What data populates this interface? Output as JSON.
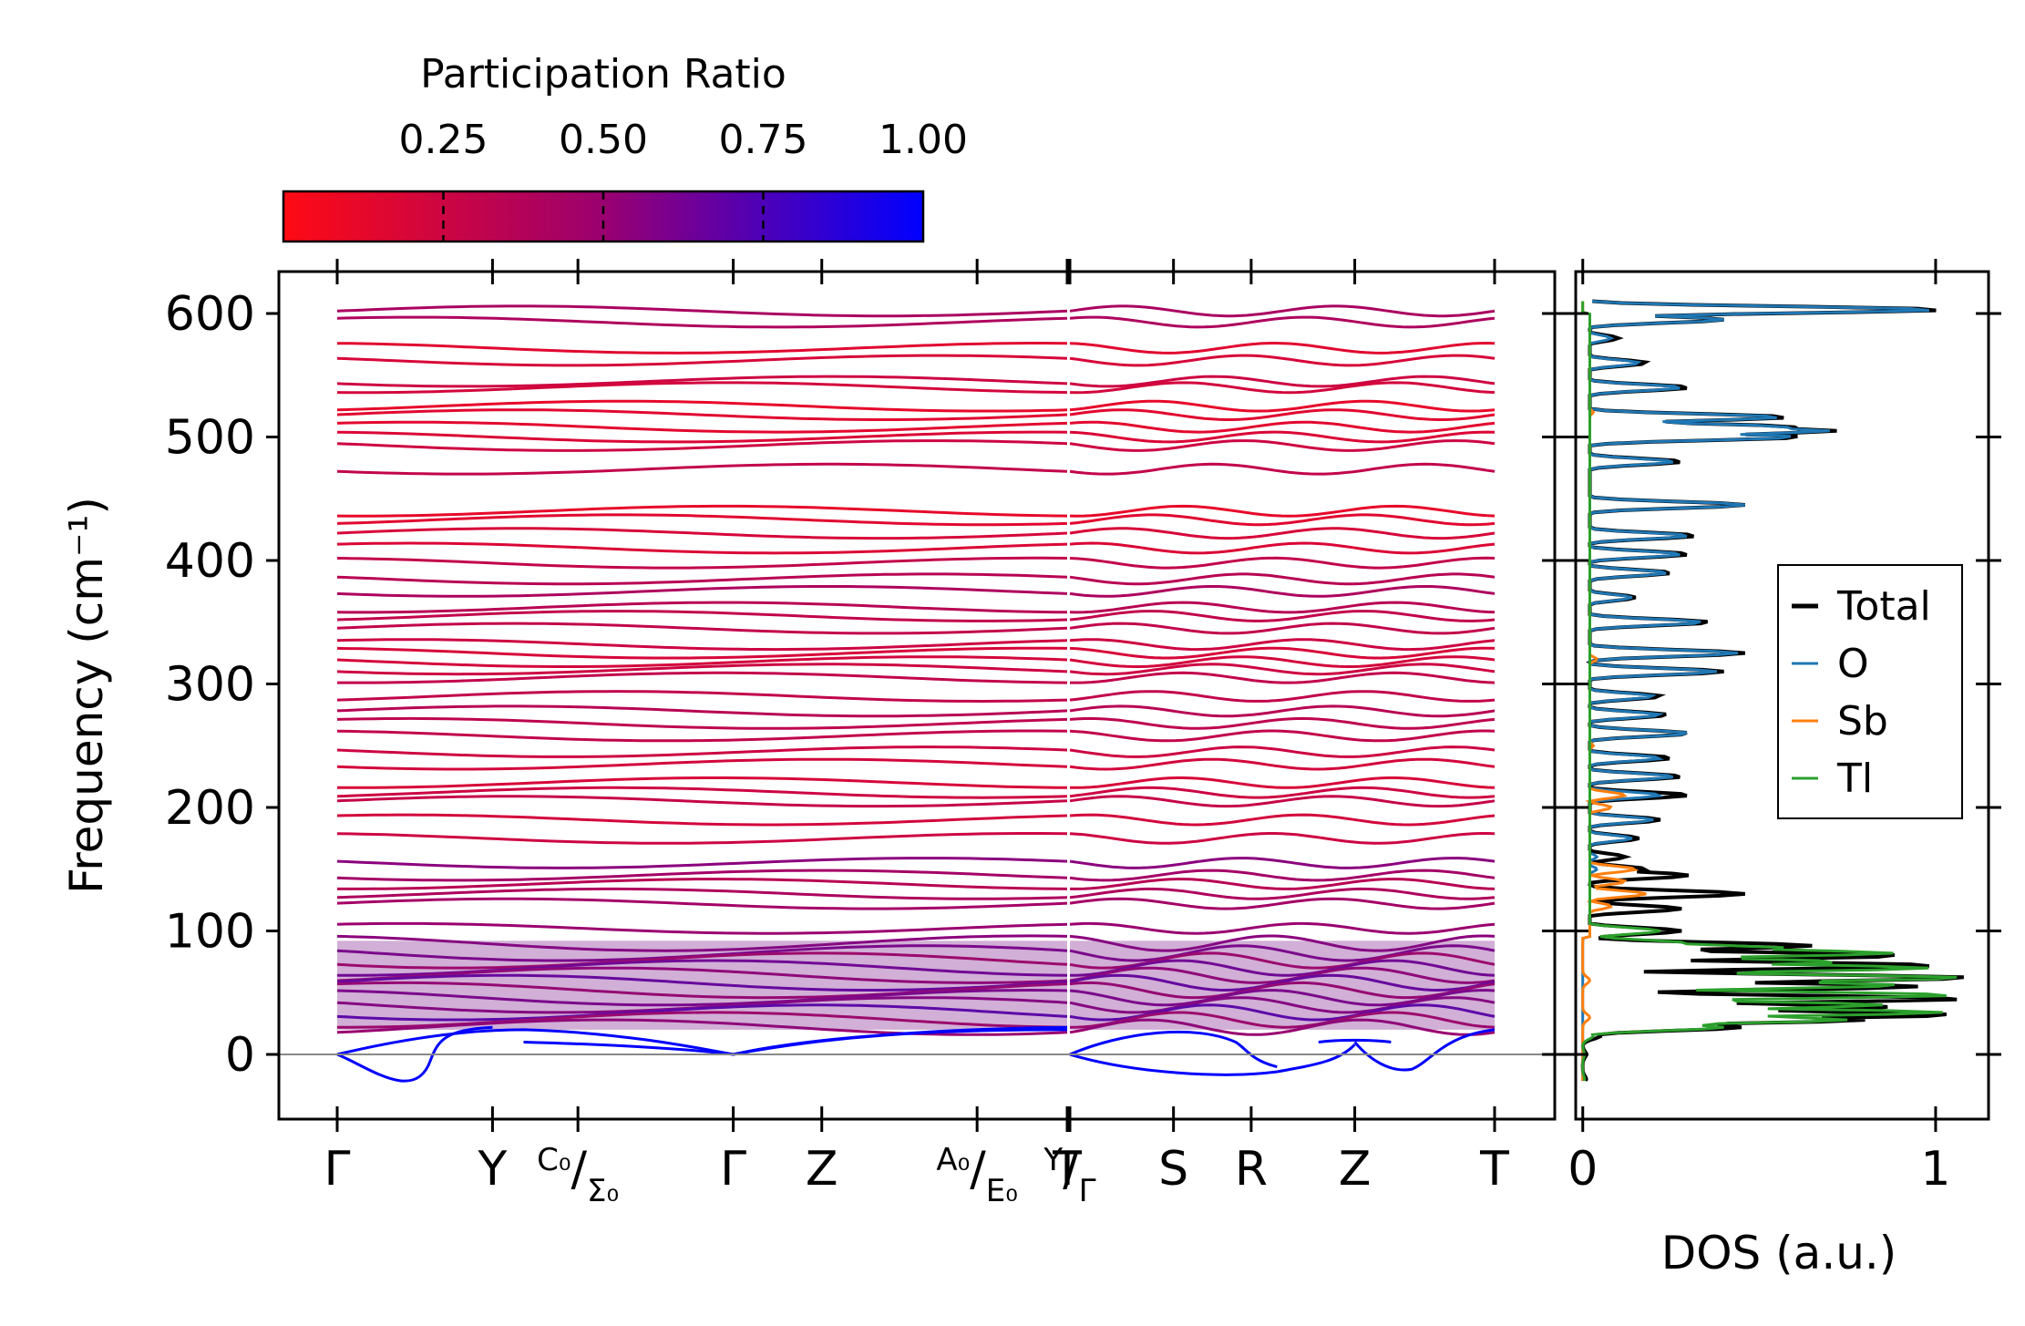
{
  "chart_data": [
    {
      "type": "line",
      "title": "",
      "xlabel": "",
      "ylabel": "Frequency (cm⁻¹)",
      "ylim": [
        -52,
        635
      ],
      "yticks": [
        0,
        100,
        200,
        300,
        400,
        500,
        600
      ],
      "ytick_labels": [
        "0",
        "100",
        "200",
        "300",
        "400",
        "500",
        "600"
      ],
      "kpath_segments": [
        {
          "kpoints": [
            {
              "label": "Γ",
              "pos": 0.0
            },
            {
              "label": "Y",
              "pos": 1.0
            },
            {
              "label": "C₀/Σ₀",
              "pos": 1.55
            },
            {
              "label": "Γ",
              "pos": 2.55
            },
            {
              "label": "Z",
              "pos": 3.12
            },
            {
              "label": "A₀/E₀",
              "pos": 4.12
            },
            {
              "label": "T",
              "pos": 4.7
            }
          ]
        },
        {
          "kpoints": [
            {
              "label": "Y/Γ",
              "pos": 0.0
            },
            {
              "label": "S",
              "pos": 1.0
            },
            {
              "label": "R",
              "pos": 1.75
            },
            {
              "label": "Z",
              "pos": 2.75
            },
            {
              "label": "T",
              "pos": 4.1
            }
          ]
        }
      ],
      "colorbar": {
        "label": "Participation Ratio",
        "range": [
          0.0,
          1.0
        ],
        "ticks": [
          0.25,
          0.5,
          0.75,
          1.0
        ],
        "tick_labels": [
          "0.25",
          "0.50",
          "0.75",
          "1.00"
        ],
        "color_low": "#ff0000",
        "color_high": "#0000ff"
      },
      "bands": [
        {
          "freq": 602,
          "pr": 0.42
        },
        {
          "freq": 593,
          "pr": 0.4
        },
        {
          "freq": 572,
          "pr": 0.15
        },
        {
          "freq": 562,
          "pr": 0.2
        },
        {
          "freq": 545,
          "pr": 0.25
        },
        {
          "freq": 540,
          "pr": 0.22
        },
        {
          "freq": 525,
          "pr": 0.12
        },
        {
          "freq": 518,
          "pr": 0.15
        },
        {
          "freq": 508,
          "pr": 0.14
        },
        {
          "freq": 500,
          "pr": 0.18
        },
        {
          "freq": 493,
          "pr": 0.25
        },
        {
          "freq": 474,
          "pr": 0.3
        },
        {
          "freq": 440,
          "pr": 0.12
        },
        {
          "freq": 433,
          "pr": 0.15
        },
        {
          "freq": 422,
          "pr": 0.2
        },
        {
          "freq": 410,
          "pr": 0.18
        },
        {
          "freq": 398,
          "pr": 0.3
        },
        {
          "freq": 385,
          "pr": 0.35
        },
        {
          "freq": 375,
          "pr": 0.4
        },
        {
          "freq": 362,
          "pr": 0.35
        },
        {
          "freq": 355,
          "pr": 0.3
        },
        {
          "freq": 345,
          "pr": 0.3
        },
        {
          "freq": 332,
          "pr": 0.25
        },
        {
          "freq": 325,
          "pr": 0.2
        },
        {
          "freq": 318,
          "pr": 0.22
        },
        {
          "freq": 312,
          "pr": 0.25
        },
        {
          "freq": 305,
          "pr": 0.3
        },
        {
          "freq": 290,
          "pr": 0.3
        },
        {
          "freq": 278,
          "pr": 0.35
        },
        {
          "freq": 268,
          "pr": 0.32
        },
        {
          "freq": 258,
          "pr": 0.3
        },
        {
          "freq": 245,
          "pr": 0.25
        },
        {
          "freq": 235,
          "pr": 0.22
        },
        {
          "freq": 220,
          "pr": 0.2
        },
        {
          "freq": 212,
          "pr": 0.25
        },
        {
          "freq": 205,
          "pr": 0.28
        },
        {
          "freq": 190,
          "pr": 0.22
        },
        {
          "freq": 175,
          "pr": 0.25
        },
        {
          "freq": 155,
          "pr": 0.55
        },
        {
          "freq": 145,
          "pr": 0.45
        },
        {
          "freq": 138,
          "pr": 0.35
        },
        {
          "freq": 130,
          "pr": 0.4
        },
        {
          "freq": 122,
          "pr": 0.45
        },
        {
          "freq": 102,
          "pr": 0.5
        },
        {
          "freq": 90,
          "pr": 0.55
        },
        {
          "freq": 82,
          "pr": 0.6
        },
        {
          "freq": 76,
          "pr": 0.4
        },
        {
          "freq": 70,
          "pr": 0.65
        },
        {
          "freq": 64,
          "pr": 0.5
        },
        {
          "freq": 58,
          "pr": 0.7
        },
        {
          "freq": 52,
          "pr": 0.45
        },
        {
          "freq": 46,
          "pr": 0.6
        },
        {
          "freq": 40,
          "pr": 0.55
        },
        {
          "freq": 34,
          "pr": 0.75
        },
        {
          "freq": 28,
          "pr": 0.4
        },
        {
          "freq": 22,
          "pr": 0.5
        }
      ],
      "acoustic_pr": 1.0
    },
    {
      "type": "line",
      "title": "",
      "xlabel": "DOS (a.u.)",
      "ylabel": "",
      "xlim": [
        -0.02,
        1.15
      ],
      "xticks": [
        0,
        1
      ],
      "xtick_labels": [
        "0",
        "1"
      ],
      "ylim": [
        -52,
        635
      ],
      "legend_position": "center-right",
      "series": [
        {
          "name": "Total",
          "color": "#000000",
          "peaks": [
            [
              603,
              1.02
            ],
            [
              595,
              0.4
            ],
            [
              580,
              0.1
            ],
            [
              560,
              0.18
            ],
            [
              540,
              0.3
            ],
            [
              516,
              0.58
            ],
            [
              508,
              0.6
            ],
            [
              500,
              0.62
            ],
            [
              505,
              0.72
            ],
            [
              480,
              0.28
            ],
            [
              445,
              0.46
            ],
            [
              420,
              0.32
            ],
            [
              405,
              0.3
            ],
            [
              390,
              0.25
            ],
            [
              370,
              0.15
            ],
            [
              350,
              0.36
            ],
            [
              325,
              0.46
            ],
            [
              310,
              0.4
            ],
            [
              290,
              0.22
            ],
            [
              275,
              0.24
            ],
            [
              260,
              0.3
            ],
            [
              240,
              0.25
            ],
            [
              225,
              0.28
            ],
            [
              210,
              0.3
            ],
            [
              190,
              0.22
            ],
            [
              175,
              0.16
            ],
            [
              160,
              0.12
            ],
            [
              150,
              0.18
            ],
            [
              145,
              0.3
            ],
            [
              130,
              0.46
            ],
            [
              118,
              0.28
            ],
            [
              100,
              0.28
            ],
            [
              88,
              0.65
            ],
            [
              80,
              0.9
            ],
            [
              72,
              1.0
            ],
            [
              62,
              1.1
            ],
            [
              55,
              0.95
            ],
            [
              45,
              1.08
            ],
            [
              38,
              0.88
            ],
            [
              32,
              1.05
            ],
            [
              28,
              0.8
            ],
            [
              22,
              0.45
            ],
            [
              15,
              0.05
            ],
            [
              0,
              0.01
            ],
            [
              -20,
              0.01
            ]
          ]
        },
        {
          "name": "O",
          "color": "#1f77b4",
          "peaks": [
            [
              603,
              1.0
            ],
            [
              595,
              0.4
            ],
            [
              580,
              0.08
            ],
            [
              560,
              0.16
            ],
            [
              540,
              0.28
            ],
            [
              516,
              0.56
            ],
            [
              508,
              0.58
            ],
            [
              500,
              0.6
            ],
            [
              505,
              0.7
            ],
            [
              480,
              0.26
            ],
            [
              445,
              0.46
            ],
            [
              420,
              0.3
            ],
            [
              405,
              0.28
            ],
            [
              390,
              0.24
            ],
            [
              370,
              0.14
            ],
            [
              350,
              0.34
            ],
            [
              325,
              0.44
            ],
            [
              310,
              0.38
            ],
            [
              290,
              0.2
            ],
            [
              275,
              0.22
            ],
            [
              260,
              0.3
            ],
            [
              240,
              0.22
            ],
            [
              225,
              0.26
            ],
            [
              210,
              0.22
            ],
            [
              190,
              0.2
            ],
            [
              175,
              0.14
            ],
            [
              160,
              0.04
            ],
            [
              150,
              0.04
            ],
            [
              100,
              0.02
            ]
          ]
        },
        {
          "name": "Sb",
          "color": "#ff7f0e",
          "peaks": [
            [
              520,
              0.03
            ],
            [
              510,
              0.02
            ],
            [
              330,
              0.02
            ],
            [
              320,
              0.04
            ],
            [
              250,
              0.03
            ],
            [
              210,
              0.12
            ],
            [
              200,
              0.08
            ],
            [
              150,
              0.15
            ],
            [
              140,
              0.12
            ],
            [
              130,
              0.18
            ],
            [
              120,
              0.08
            ],
            [
              60,
              0.02
            ],
            [
              30,
              0.02
            ]
          ]
        },
        {
          "name": "Tl",
          "color": "#2ca02c",
          "peaks": [
            [
              100,
              0.22
            ],
            [
              90,
              0.3
            ],
            [
              86,
              0.58
            ],
            [
              82,
              0.88
            ],
            [
              75,
              0.72
            ],
            [
              70,
              0.98
            ],
            [
              62,
              1.08
            ],
            [
              56,
              0.9
            ],
            [
              48,
              1.05
            ],
            [
              40,
              0.85
            ],
            [
              34,
              1.02
            ],
            [
              28,
              0.75
            ],
            [
              22,
              0.4
            ],
            [
              15,
              0.03
            ],
            [
              0,
              0.005
            ],
            [
              -20,
              0.005
            ]
          ]
        }
      ]
    }
  ]
}
